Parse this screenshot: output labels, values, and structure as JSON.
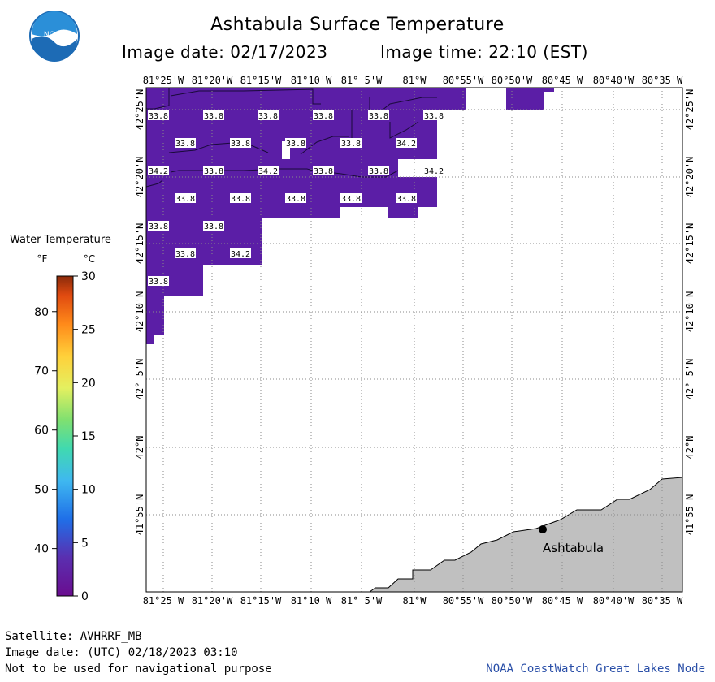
{
  "header": {
    "title": "Ashtabula Surface Temperature",
    "image_date": "Image date: 02/17/2023",
    "image_time": "Image time: 22:10 (EST)"
  },
  "logo": {
    "text": "NOAA",
    "icon": "noaa-logo-icon"
  },
  "map": {
    "top_lon_labels": [
      "81°25'W",
      "81°20'W",
      "81°15'W",
      "81°10'W",
      "81° 5'W",
      "81°W",
      "80°55'W",
      "80°50'W",
      "80°45'W",
      "80°40'W",
      "80°35'W"
    ],
    "bottom_lon_labels": [
      "81°25'W",
      "81°20'W",
      "81°15'W",
      "81°10'W",
      "81° 5'W",
      "81°W",
      "80°55'W",
      "80°50'W",
      "80°45'W",
      "80°40'W",
      "80°35'W"
    ],
    "lat_labels": [
      "42°25'N",
      "42°20'N",
      "42°15'N",
      "42°10'N",
      "42° 5'N",
      "42°N",
      "41°55'N"
    ],
    "place_label": "Ashtabula",
    "temperature_labels": [
      {
        "v": "33.8"
      },
      {
        "v": "33.8"
      },
      {
        "v": "33.8"
      },
      {
        "v": "33.8"
      },
      {
        "v": "33.8"
      },
      {
        "v": "33.8"
      },
      {
        "v": "33.8"
      },
      {
        "v": "33.8"
      },
      {
        "v": "33.8"
      },
      {
        "v": "33.8"
      },
      {
        "v": "34.2"
      },
      {
        "v": "34.2"
      },
      {
        "v": "33.8"
      },
      {
        "v": "34.2"
      },
      {
        "v": "33.8"
      },
      {
        "v": "33.8"
      },
      {
        "v": "34.2"
      },
      {
        "v": "33.8"
      },
      {
        "v": "33.8"
      },
      {
        "v": "33.8"
      },
      {
        "v": "33.8"
      },
      {
        "v": "33.8"
      },
      {
        "v": "33.8"
      },
      {
        "v": "33.8"
      },
      {
        "v": "33.8"
      },
      {
        "v": "34.2"
      },
      {
        "v": "33.8"
      }
    ],
    "colors": {
      "water_cold": "#5b1ea6",
      "land": "#c0c0c0",
      "grid": "#9a9a9a"
    }
  },
  "legend": {
    "title": "Water Temperature",
    "unit_f": "°F",
    "unit_c": "°C",
    "f_ticks": [
      "80",
      "70",
      "60",
      "50",
      "40"
    ],
    "c_ticks": [
      "30",
      "25",
      "20",
      "15",
      "10",
      "5",
      "0"
    ]
  },
  "footer": {
    "satellite": "Satellite: AVHRRF_MB",
    "utc_date": "Image date: (UTC) 02/18/2023  03:10",
    "disclaimer": "Not to be used for navigational purpose",
    "credit": "NOAA CoastWatch Great Lakes Node"
  }
}
